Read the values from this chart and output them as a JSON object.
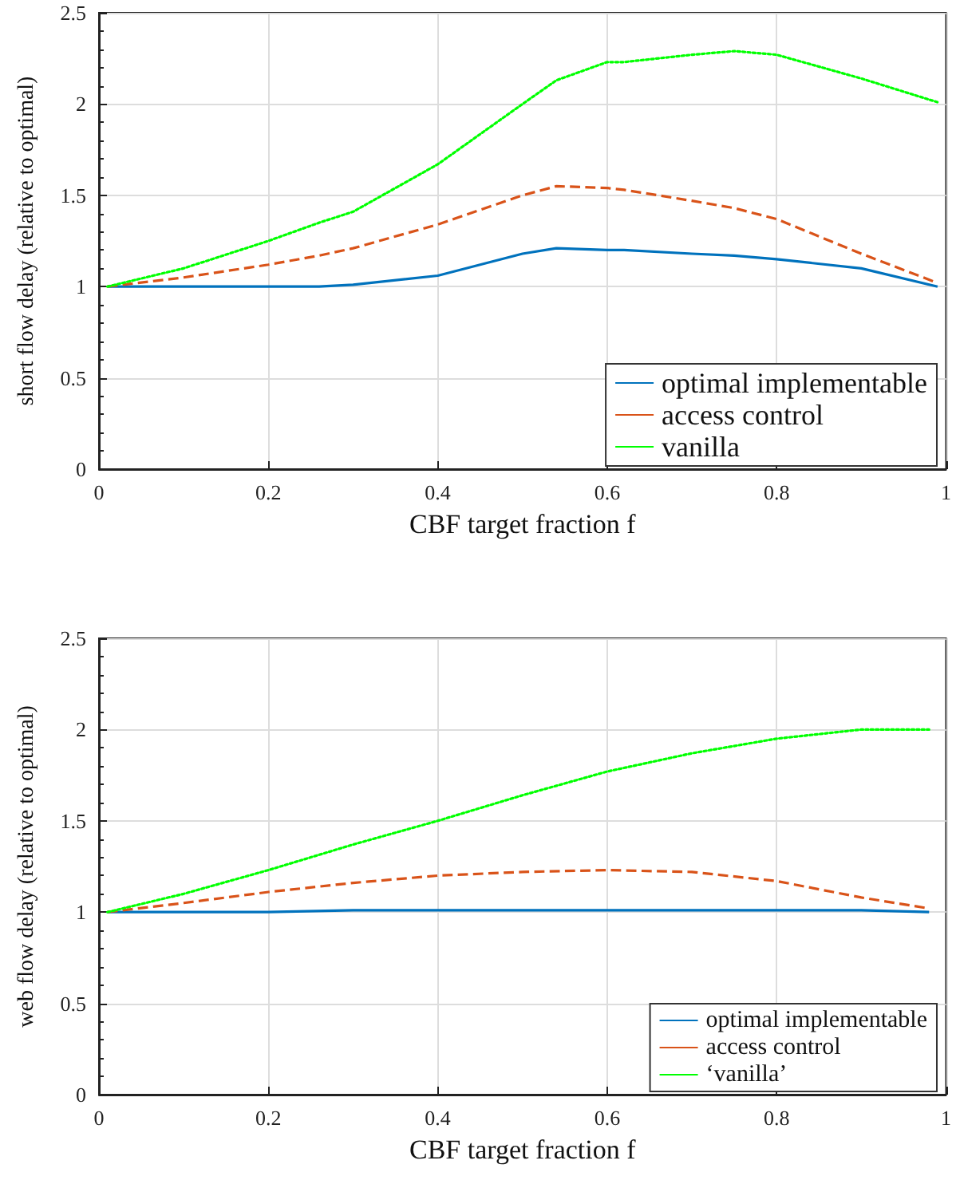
{
  "chart_data": [
    {
      "type": "line",
      "xlabel": "CBF target fraction f",
      "ylabel": "short flow delay (relative to optimal)",
      "xlim": [
        0,
        1
      ],
      "xticks": [
        0,
        0.2,
        0.4,
        0.6,
        0.8,
        1
      ],
      "ylim": [
        0,
        2.5
      ],
      "yticks": [
        0,
        0.5,
        1,
        1.5,
        2,
        2.5
      ],
      "grid": true,
      "legend": "bottom right",
      "x": [
        0.01,
        0.1,
        0.2,
        0.26,
        0.3,
        0.4,
        0.5,
        0.54,
        0.6,
        0.62,
        0.7,
        0.75,
        0.8,
        0.9,
        0.99
      ],
      "series": [
        {
          "name": "optimal implementable",
          "color": "#0072bd",
          "line_style": "solid",
          "values": [
            1,
            1,
            1,
            1,
            1.01,
            1.06,
            1.18,
            1.21,
            1.2,
            1.2,
            1.18,
            1.17,
            1.15,
            1.1,
            1
          ]
        },
        {
          "name": "access control",
          "color": "#d95319",
          "line_style": "dashed",
          "values": [
            1,
            1.05,
            1.12,
            1.17,
            1.21,
            1.34,
            1.5,
            1.55,
            1.54,
            1.53,
            1.47,
            1.43,
            1.37,
            1.18,
            1.02
          ]
        },
        {
          "name": "vanilla",
          "color": "#00ff00",
          "line_style": "dotted",
          "values": [
            1,
            1.1,
            1.25,
            1.35,
            1.41,
            1.67,
            2,
            2.13,
            2.23,
            2.23,
            2.27,
            2.29,
            2.27,
            2.14,
            2.01
          ]
        }
      ]
    },
    {
      "type": "line",
      "xlabel": "CBF target fraction f",
      "ylabel": "web flow delay (relative to optimal)",
      "xlim": [
        0,
        1
      ],
      "xticks": [
        0,
        0.2,
        0.4,
        0.6,
        0.8,
        1
      ],
      "ylim": [
        0,
        2.5
      ],
      "yticks": [
        0,
        0.5,
        1,
        1.5,
        2,
        2.5
      ],
      "grid": true,
      "legend": "bottom right",
      "x": [
        0.01,
        0.1,
        0.2,
        0.3,
        0.4,
        0.5,
        0.6,
        0.7,
        0.8,
        0.9,
        0.98
      ],
      "series": [
        {
          "name": "optimal implementable",
          "color": "#0072bd",
          "line_style": "solid",
          "values": [
            1,
            1,
            1,
            1.01,
            1.01,
            1.01,
            1.01,
            1.01,
            1.01,
            1.01,
            1
          ]
        },
        {
          "name": "access control",
          "color": "#d95319",
          "line_style": "dashed",
          "values": [
            1,
            1.05,
            1.11,
            1.16,
            1.2,
            1.22,
            1.23,
            1.22,
            1.17,
            1.08,
            1.02
          ]
        },
        {
          "name": "‘vanilla’",
          "color": "#00ff00",
          "line_style": "dotted",
          "values": [
            1,
            1.1,
            1.23,
            1.37,
            1.5,
            1.64,
            1.77,
            1.87,
            1.95,
            2,
            2
          ]
        }
      ]
    }
  ]
}
